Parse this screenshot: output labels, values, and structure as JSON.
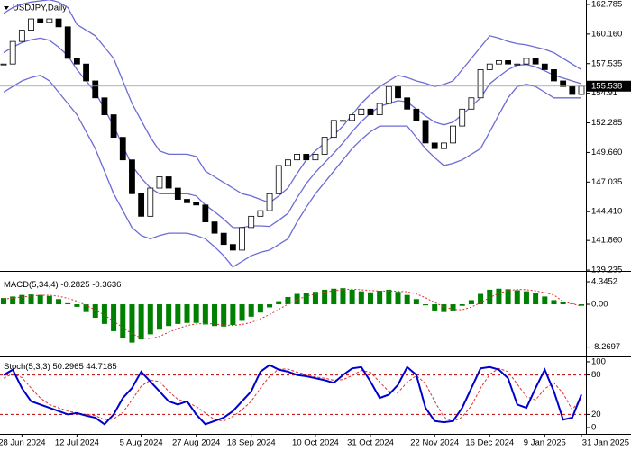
{
  "chart_data": [
    {
      "type": "candlestick",
      "title": "USDJPY,Daily",
      "categories": [
        null,
        null,
        "28 Jun 2024",
        null,
        null,
        null,
        null,
        null,
        "12 Jul 2024",
        null,
        null,
        null,
        null,
        null,
        null,
        "5 Aug 2024",
        null,
        null,
        null,
        null,
        null,
        "27 Aug 2024",
        null,
        null,
        null,
        null,
        null,
        "18 Sep 2024",
        null,
        null,
        null,
        null,
        null,
        null,
        "10 Oct 2024",
        null,
        null,
        null,
        null,
        null,
        "31 Oct 2024",
        null,
        null,
        null,
        null,
        null,
        null,
        "22 Nov 2024",
        null,
        null,
        null,
        null,
        null,
        "16 Dec 2024",
        null,
        null,
        null,
        null,
        null,
        "9 Jan 2025",
        null,
        null,
        null,
        "31 Jan 2025"
      ],
      "close": [
        157.5,
        159.5,
        160.5,
        161.5,
        161.2,
        161.5,
        160.8,
        158,
        157.5,
        156,
        154.5,
        153,
        151,
        149,
        146,
        144,
        146.5,
        147.5,
        146.5,
        145.5,
        145.2,
        145,
        143.5,
        142.5,
        141.5,
        141,
        143,
        144,
        144.5,
        146,
        148.5,
        149,
        149.5,
        149,
        149.5,
        151,
        152.5,
        152.5,
        153,
        153.5,
        153,
        154,
        155.5,
        154.5,
        153.5,
        152.5,
        150.5,
        150,
        150.5,
        152,
        153.5,
        154.5,
        157,
        157.5,
        157.8,
        157.5,
        157.5,
        158,
        157.5,
        157,
        156,
        155.5,
        154.8,
        155.538
      ],
      "series": [
        {
          "color": "#6b6bd6",
          "values": [
            162,
            162.5,
            162.8,
            163,
            163.1,
            163.2,
            163,
            162.5,
            161,
            160.5,
            160,
            159,
            158,
            156,
            154,
            152.5,
            151,
            149.8,
            149.5,
            149.5,
            149.5,
            149.3,
            148,
            147.5,
            147,
            146.5,
            146,
            145.8,
            145.5,
            145.2,
            145.8,
            146.5,
            147.8,
            149,
            149.8,
            150.5,
            151.2,
            152,
            153,
            154,
            154.8,
            155.5,
            156,
            156.5,
            156.3,
            156,
            155.8,
            155.5,
            155.7,
            156,
            157,
            158,
            159,
            160,
            159.8,
            159.5,
            159.3,
            159.2,
            159,
            158.8,
            158.5,
            158,
            157.5,
            157
          ]
        },
        {
          "color": "#6b6bd6",
          "values": [
            158.5,
            159,
            159.4,
            159.65,
            159.8,
            159.6,
            159,
            158.25,
            157,
            156,
            155,
            153.5,
            152,
            150.25,
            148.5,
            147.4,
            146.5,
            146,
            146,
            146,
            146,
            145.8,
            145,
            144.4,
            143.75,
            143,
            143,
            143.15,
            143.15,
            143.1,
            143.65,
            144.25,
            145.65,
            146.9,
            147.9,
            148.75,
            149.6,
            150.5,
            151.5,
            152.4,
            153.15,
            153.75,
            154,
            154.25,
            154.15,
            153.5,
            152.9,
            152.35,
            152.1,
            152.35,
            153,
            153.75,
            154.5,
            155.75,
            156.4,
            157,
            157.4,
            157.45,
            157.25,
            156.9,
            156.5,
            156.25,
            156,
            155.75
          ]
        },
        {
          "color": "#6b6bd6",
          "values": [
            155,
            155.5,
            156,
            156.3,
            156.5,
            156,
            155,
            154,
            153,
            151.5,
            150,
            148,
            146,
            144.5,
            143,
            142.3,
            142,
            142.3,
            142.5,
            142.5,
            142.5,
            142.3,
            142,
            141.3,
            140.5,
            139.5,
            140,
            140.5,
            140.8,
            141,
            141.5,
            142,
            143.5,
            144.8,
            146,
            147,
            148,
            149,
            150,
            150.8,
            151.5,
            152,
            152,
            152,
            152,
            151,
            150,
            149.2,
            148.5,
            148.7,
            149,
            149.5,
            150,
            151.5,
            153,
            154.5,
            155.5,
            155.7,
            155.5,
            155,
            154.5,
            154.5,
            154.5,
            154.5
          ]
        }
      ],
      "ylim": [
        139.16,
        163.18
      ],
      "yticks": [
        162.785,
        {
          "value": 160.16,
          "label": "160.160"
        },
        157.535,
        154.91,
        152.285,
        {
          "value": 149.66,
          "label": "149.660"
        },
        147.035,
        {
          "value": 144.41,
          "label": "144.410"
        },
        {
          "value": 141.86,
          "label": "141.860"
        },
        139.235
      ]
    },
    {
      "type": "bar",
      "title": "MACD(5,34,4)",
      "series": [
        {
          "color": "#008000",
          "values": [
            1.2,
            1.5,
            1.8,
            1.9,
            1.8,
            1.6,
            1.0,
            0.2,
            -0.5,
            -1.5,
            -2.6,
            -3.8,
            -5.2,
            -6.5,
            -7.4,
            -6.8,
            -5.8,
            -4.9,
            -4.2,
            -3.8,
            -3.6,
            -3.6,
            -3.9,
            -4.2,
            -4.3,
            -4.0,
            -3.2,
            -2.4,
            -1.6,
            -0.6,
            0.6,
            1.4,
            2.0,
            2.2,
            2.4,
            2.8,
            3.0,
            3.1,
            2.8,
            2.5,
            2.3,
            2.6,
            2.8,
            2.4,
            1.8,
            1.0,
            -0.2,
            -1.2,
            -1.5,
            -1.2,
            -0.3,
            0.8,
            2.0,
            2.8,
            3.0,
            2.9,
            2.7,
            2.5,
            2.2,
            1.5,
            0.8,
            0.4,
            0.1,
            -0.2825
          ]
        },
        {
          "color": "#e03030",
          "values": [
            1.0,
            1.2,
            1.4,
            1.6,
            1.75,
            1.75,
            1.55,
            1.15,
            0.6,
            -0.2,
            -1.1,
            -2.1,
            -3.3,
            -4.5,
            -5.7,
            -6.5,
            -6.6,
            -6.2,
            -5.4,
            -4.7,
            -4.1,
            -3.8,
            -3.7,
            -3.8,
            -4.0,
            -4.1,
            -3.9,
            -3.5,
            -2.8,
            -2.0,
            -1.0,
            0.0,
            0.85,
            1.55,
            2.0,
            2.35,
            2.6,
            2.8,
            2.9,
            2.8,
            2.65,
            2.55,
            2.55,
            2.5,
            2.4,
            2.0,
            1.25,
            0.35,
            -0.5,
            -1.0,
            -1.05,
            -0.55,
            0.3,
            1.3,
            2.1,
            2.65,
            2.85,
            2.8,
            2.6,
            2.25,
            1.8,
            0.5,
            0.1,
            -0.3636
          ]
        }
      ],
      "ylim": [
        -9.9,
        6.26
      ],
      "yticks": [
        4.3452,
        {
          "value": 0,
          "label": "0.00"
        },
        -8.2697
      ]
    },
    {
      "type": "line",
      "title": "Stoch(5,3,3)",
      "series": [
        {
          "color": "#0000cc",
          "values": [
            80,
            88,
            60,
            40,
            35,
            30,
            25,
            20,
            22,
            18,
            15,
            5,
            20,
            45,
            60,
            85,
            70,
            55,
            40,
            35,
            40,
            20,
            5,
            10,
            15,
            25,
            40,
            55,
            85,
            95,
            88,
            85,
            80,
            78,
            75,
            72,
            68,
            80,
            90,
            92,
            70,
            45,
            50,
            65,
            92,
            80,
            30,
            10,
            8,
            10,
            30,
            60,
            90,
            92,
            88,
            75,
            35,
            30,
            60,
            88,
            55,
            12,
            15,
            50.2965
          ]
        },
        {
          "color": "#e03030",
          "values": [
            75,
            82,
            76,
            60,
            45,
            35,
            30,
            25,
            22,
            20,
            18,
            12,
            13,
            23,
            42,
            63,
            72,
            70,
            55,
            43,
            38,
            32,
            22,
            12,
            10,
            17,
            27,
            40,
            60,
            78,
            89,
            89,
            84,
            81,
            77,
            75,
            72,
            73,
            79,
            87,
            84,
            69,
            55,
            53,
            69,
            79,
            67,
            40,
            16,
            9,
            16,
            33,
            60,
            81,
            90,
            85,
            66,
            47,
            42,
            59,
            68,
            52,
            27,
            44.7185
          ]
        }
      ],
      "levels": [
        80,
        20
      ],
      "ylim": [
        -9.6,
        106.8
      ],
      "yticks": [
        100,
        80,
        20,
        0
      ]
    }
  ]
}
